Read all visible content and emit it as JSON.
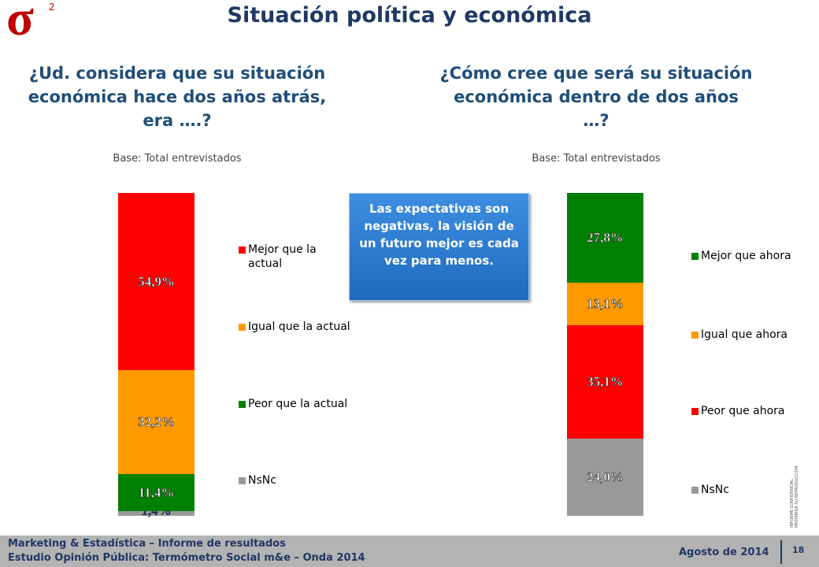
{
  "logo": "σ",
  "logo_sup": "2",
  "title": "Situación política y económica",
  "callout": "Las expectativas son negativas, la visión de un futuro mejor es cada vez para menos.",
  "side_note": [
    "INFORME CONFIDENCIAL",
    "PROHIBIDA SU REPRODUCCION"
  ],
  "footer": {
    "lines": [
      "Marketing & Estadística – Informe de resultados",
      "Estudio Opinión Pública: Termómetro Social m&e – Onda 2014"
    ],
    "date": "Agosto de 2014",
    "page": "18"
  },
  "chart_data": [
    {
      "type": "bar",
      "stacked": true,
      "title": "¿Ud. considera que su situación económica hace dos años atrás, era ….?",
      "subtitle": "Base: Total entrevistados",
      "legend": "right",
      "categories": [
        null
      ],
      "series": [
        {
          "name": "Mejor que la actual",
          "color": "#ff0000",
          "values": [
            54.9
          ],
          "value_labels": [
            "54,9%"
          ]
        },
        {
          "name": "Igual que la actual",
          "color": "#ff9900",
          "values": [
            32.2
          ],
          "value_labels": [
            "32,2%"
          ]
        },
        {
          "name": "Peor que la actual",
          "color": "#008000",
          "values": [
            11.4
          ],
          "value_labels": [
            "11,4%"
          ]
        },
        {
          "name": "NsNc",
          "color": "#999999",
          "values": [
            1.4
          ],
          "value_labels": [
            "1,4%"
          ]
        }
      ]
    },
    {
      "type": "bar",
      "stacked": true,
      "title": "¿Cómo cree que será su situación económica dentro de dos años …?",
      "subtitle": "Base: Total entrevistados",
      "legend": "right",
      "categories": [
        null
      ],
      "series": [
        {
          "name": "Mejor que ahora",
          "color": "#008000",
          "values": [
            27.8
          ],
          "value_labels": [
            "27,8%"
          ]
        },
        {
          "name": "Igual que ahora",
          "color": "#ff9900",
          "values": [
            13.1
          ],
          "value_labels": [
            "13,1%"
          ]
        },
        {
          "name": "Peor que ahora",
          "color": "#ff0000",
          "values": [
            35.1
          ],
          "value_labels": [
            "35,1%"
          ]
        },
        {
          "name": "NsNc",
          "color": "#999999",
          "values": [
            24.0
          ],
          "value_labels": [
            "24,0%"
          ]
        }
      ]
    }
  ]
}
